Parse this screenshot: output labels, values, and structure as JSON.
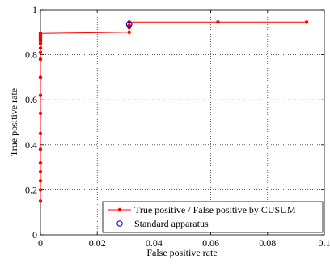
{
  "chart_data": {
    "type": "line",
    "xlabel": "False positive rate",
    "ylabel": "True positive rate",
    "xlim": [
      0,
      0.1
    ],
    "ylim": [
      0,
      1
    ],
    "x_ticks": [
      0,
      0.02,
      0.04,
      0.06,
      0.08,
      0.1
    ],
    "x_tick_labels": [
      "0",
      "0.02",
      "0.04",
      "0.06",
      "0.08",
      "0.1"
    ],
    "y_ticks": [
      0,
      0.2,
      0.4,
      0.6,
      0.8,
      1
    ],
    "y_tick_labels": [
      "0",
      "0.2",
      "0.4",
      "0.6",
      "0.8",
      "1"
    ],
    "grid": true,
    "legend_position": "bottom-right",
    "series": [
      {
        "name": "True positive / False positive by CUSUM",
        "color": "#ff0000",
        "marker": "dot",
        "x": [
          0,
          0,
          0,
          0,
          0,
          0,
          0,
          0,
          0,
          0,
          0,
          0,
          0,
          0,
          0,
          0,
          0,
          0,
          0,
          0,
          0,
          0.03125,
          0.03125,
          0.03125,
          0.03125,
          0.0625,
          0.09375
        ],
        "y": [
          0.15,
          0.2,
          0.24,
          0.28,
          0.32,
          0.38,
          0.45,
          0.54,
          0.62,
          0.7,
          0.78,
          0.81,
          0.83,
          0.85,
          0.86,
          0.87,
          0.875,
          0.88,
          0.885,
          0.89,
          0.895,
          0.9,
          0.92,
          0.93,
          0.945,
          0.945,
          0.945
        ]
      },
      {
        "name": "Standard apparatus",
        "color": "#0000aa",
        "marker": "circle",
        "x": [
          0.03125
        ],
        "y": [
          0.935
        ]
      }
    ]
  }
}
